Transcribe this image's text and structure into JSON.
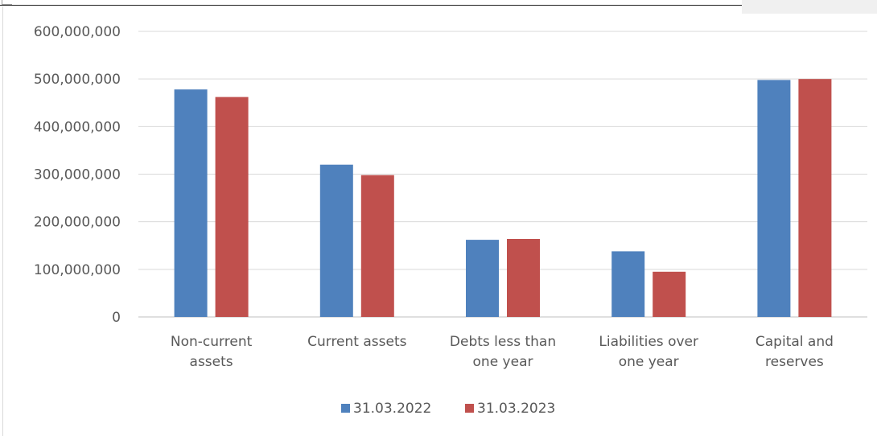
{
  "chart_data": {
    "type": "bar",
    "title": "",
    "xlabel": "",
    "ylabel": "",
    "categories": [
      [
        "Non-current",
        "assets"
      ],
      [
        "Current assets"
      ],
      [
        "Debts less than",
        "one year"
      ],
      [
        "Liabilities over",
        "one year"
      ],
      [
        "Capital and",
        "reserves"
      ]
    ],
    "series": [
      {
        "name": "31.03.2022",
        "color": "#4f81bd",
        "values": [
          478000000,
          320000000,
          162000000,
          138000000,
          498000000
        ]
      },
      {
        "name": "31.03.2023",
        "color": "#c0504d",
        "values": [
          462000000,
          298000000,
          164000000,
          95000000,
          500000000
        ]
      }
    ],
    "ylim": [
      0,
      600000000
    ],
    "yticks": [
      "0",
      "100,000,000",
      "200,000,000",
      "300,000,000",
      "400,000,000",
      "500,000,000",
      "600,000,000"
    ],
    "grid": true,
    "legend_position": "bottom"
  }
}
